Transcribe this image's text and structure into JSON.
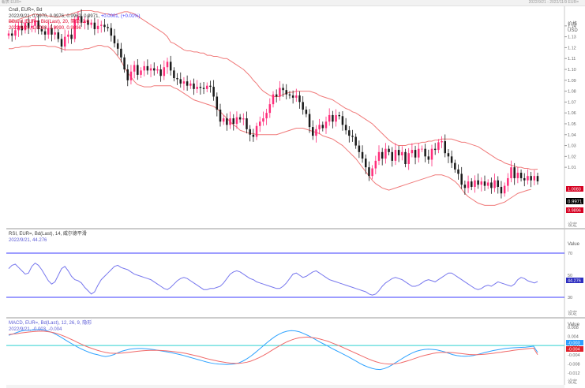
{
  "window": {
    "title_left": "報表 EUR=",
    "title_right": "2022/9/21 - 2022/11/9 EUR="
  },
  "price_panel": {
    "line1_a": "Cndl, EUR=, Bd",
    "line2_a": "2022/9/21, 0.9970, 0.9976, 0.9962, 0.9971,",
    "line2_b": "+0.0001, (+0.01%)",
    "line3": "BBand, EUR=, Bid(Last), 20, 简单, 2.0",
    "line4": "2022/9/21, 1.0083, 0.9990, 0.9896",
    "axis_title1": "价格",
    "axis_title2": "USD",
    "ticks": [
      "1.14",
      "1.13",
      "1.12",
      "1.11",
      "1.10",
      "1.09",
      "1.08",
      "1.07",
      "1.06",
      "1.05",
      "1.04",
      "1.03",
      "1.02",
      "1.01"
    ],
    "last_price_tag": "0.9971",
    "upper_tag": "1.0083",
    "lower_tag": "0.9896",
    "footer": "设定"
  },
  "rsi_panel": {
    "line1": "RSI, EUR=, Bd(Last), 14, 威尔德平滑",
    "line2": "2022/9/21, 44.276",
    "axis_title": "Value",
    "ticks": [
      "70",
      "50",
      "30"
    ],
    "value_tag": "44.276",
    "footer": "设定"
  },
  "macd_panel": {
    "line1": "MACD, EUR=, Bd(Last), 12, 26, 9, 隐形",
    "line2": "2022/9/21, -0.003, -0.004",
    "axis_title": "Value",
    "ticks": [
      "0.008",
      "0.004",
      "0.000",
      "-0.004",
      "-0.008",
      "-0.012"
    ],
    "tag_macd": "-0.003",
    "tag_signal": "-0.004",
    "footer": "设定"
  },
  "colors": {
    "up_candle": "#ff2d7a",
    "down_candle": "#1a1a1a",
    "bollinger": "#f07a7a",
    "rsi_line": "#7777ee",
    "rsi_bounds": "#3b3bff",
    "macd_line": "#2fa3ff",
    "signal_line": "#f06a6a",
    "zero_line": "#2fd0d0"
  },
  "chart_data": [
    {
      "type": "candlestick",
      "panel": "price",
      "ylim": [
        0.955,
        1.158
      ],
      "y_ticks": [
        1.14,
        1.13,
        1.12,
        1.11,
        1.1,
        1.09,
        1.08,
        1.07,
        1.06,
        1.05,
        1.04,
        1.03,
        1.02,
        1.01
      ],
      "close": [
        1.133,
        1.131,
        1.136,
        1.14,
        1.136,
        1.143,
        1.138,
        1.14,
        1.145,
        1.137,
        1.135,
        1.132,
        1.138,
        1.132,
        1.134,
        1.128,
        1.121,
        1.13,
        1.132,
        1.128,
        1.146,
        1.149,
        1.143,
        1.145,
        1.141,
        1.143,
        1.137,
        1.14,
        1.141,
        1.139,
        1.138,
        1.131,
        1.124,
        1.119,
        1.111,
        1.1,
        1.09,
        1.098,
        1.104,
        1.095,
        1.099,
        1.103,
        1.099,
        1.101,
        1.099,
        1.1,
        1.094,
        1.102,
        1.107,
        1.099,
        1.092,
        1.091,
        1.087,
        1.089,
        1.085,
        1.087,
        1.082,
        1.084,
        1.083,
        1.082,
        1.085,
        1.084,
        1.075,
        1.063,
        1.052,
        1.055,
        1.049,
        1.055,
        1.05,
        1.056,
        1.054,
        1.055,
        1.045,
        1.04,
        1.038,
        1.048,
        1.052,
        1.055,
        1.06,
        1.068,
        1.077,
        1.075,
        1.083,
        1.081,
        1.077,
        1.076,
        1.074,
        1.076,
        1.07,
        1.063,
        1.059,
        1.047,
        1.039,
        1.045,
        1.049,
        1.046,
        1.052,
        1.058,
        1.052,
        1.058,
        1.057,
        1.049,
        1.044,
        1.039,
        1.038,
        1.03,
        1.024,
        1.018,
        1.01,
        1.002,
        1.009,
        1.016,
        1.024,
        1.018,
        1.027,
        1.024,
        1.016,
        1.026,
        1.021,
        1.024,
        1.013,
        1.023,
        1.026,
        1.019,
        1.027,
        1.027,
        1.02,
        1.017,
        1.027,
        1.026,
        1.033,
        1.034,
        1.023,
        1.02,
        1.014,
        1.008,
        1.004,
        0.994,
        0.991,
        0.997,
        0.992,
        0.998,
        0.994,
        0.997,
        0.993,
        0.996,
        0.991,
        0.998,
        0.992,
        0.986,
        0.993,
        1.0,
        1.01,
        1.0,
        1.005,
        1.0,
        0.998,
        1.002,
        0.998,
        1.002,
        0.9971
      ],
      "bollinger_upper": [
        1.144,
        1.144,
        1.145,
        1.146,
        1.147,
        1.148,
        1.149,
        1.15,
        1.151,
        1.15,
        1.15,
        1.15,
        1.149,
        1.149,
        1.148,
        1.148,
        1.149,
        1.15,
        1.15,
        1.151,
        1.152,
        1.153,
        1.154,
        1.154,
        1.154,
        1.154,
        1.153,
        1.153,
        1.152,
        1.151,
        1.151,
        1.15,
        1.15,
        1.151,
        1.152,
        1.153,
        1.153,
        1.152,
        1.151,
        1.149,
        1.147,
        1.145,
        1.143,
        1.141,
        1.139,
        1.137,
        1.135,
        1.133,
        1.13,
        1.125,
        1.124,
        1.122,
        1.12,
        1.118,
        1.117,
        1.117,
        1.116,
        1.116,
        1.115,
        1.115,
        1.113,
        1.113,
        1.112,
        1.112,
        1.111,
        1.11,
        1.11,
        1.108,
        1.106,
        1.104,
        1.102,
        1.1,
        1.097,
        1.094,
        1.09,
        1.087,
        1.083,
        1.08,
        1.078,
        1.076,
        1.075,
        1.075,
        1.075,
        1.077,
        1.078,
        1.079,
        1.079,
        1.08,
        1.08,
        1.08,
        1.08,
        1.08,
        1.079,
        1.078,
        1.076,
        1.075,
        1.074,
        1.073,
        1.072,
        1.07,
        1.068,
        1.066,
        1.064,
        1.063,
        1.061,
        1.06,
        1.058,
        1.056,
        1.054,
        1.052,
        1.05,
        1.047,
        1.044,
        1.041,
        1.038,
        1.035,
        1.033,
        1.031,
        1.03,
        1.03,
        1.03,
        1.031,
        1.031,
        1.032,
        1.032,
        1.033,
        1.033,
        1.034,
        1.034,
        1.035,
        1.035,
        1.036,
        1.036,
        1.036,
        1.036,
        1.035,
        1.034,
        1.033,
        1.033,
        1.032,
        1.031,
        1.03,
        1.029,
        1.027,
        1.025,
        1.023,
        1.021,
        1.019,
        1.017,
        1.016,
        1.014,
        1.013,
        1.012,
        1.011,
        1.01,
        1.01,
        1.009,
        1.009,
        1.008,
        1.008,
        1.0083
      ],
      "bollinger_lower": [
        1.119,
        1.119,
        1.12,
        1.12,
        1.121,
        1.121,
        1.121,
        1.122,
        1.122,
        1.122,
        1.122,
        1.122,
        1.121,
        1.121,
        1.121,
        1.12,
        1.119,
        1.118,
        1.118,
        1.118,
        1.118,
        1.118,
        1.118,
        1.119,
        1.119,
        1.12,
        1.121,
        1.122,
        1.122,
        1.121,
        1.121,
        1.119,
        1.116,
        1.112,
        1.108,
        1.102,
        1.097,
        1.093,
        1.089,
        1.086,
        1.085,
        1.084,
        1.084,
        1.084,
        1.085,
        1.085,
        1.085,
        1.085,
        1.085,
        1.085,
        1.083,
        1.082,
        1.08,
        1.078,
        1.076,
        1.074,
        1.072,
        1.071,
        1.07,
        1.069,
        1.068,
        1.067,
        1.066,
        1.064,
        1.061,
        1.058,
        1.055,
        1.052,
        1.049,
        1.047,
        1.044,
        1.043,
        1.042,
        1.041,
        1.041,
        1.04,
        1.04,
        1.04,
        1.04,
        1.04,
        1.04,
        1.04,
        1.041,
        1.042,
        1.043,
        1.044,
        1.045,
        1.046,
        1.046,
        1.046,
        1.045,
        1.044,
        1.043,
        1.042,
        1.041,
        1.039,
        1.038,
        1.037,
        1.036,
        1.034,
        1.032,
        1.03,
        1.027,
        1.024,
        1.021,
        1.018,
        1.014,
        1.01,
        1.006,
        1.002,
        0.998,
        0.995,
        0.993,
        0.991,
        0.99,
        0.989,
        0.99,
        0.991,
        0.992,
        0.993,
        0.994,
        0.995,
        0.996,
        0.997,
        0.998,
        0.999,
        1.0,
        1.001,
        1.002,
        1.003,
        1.003,
        1.003,
        1.002,
        1.001,
        0.999,
        0.997,
        0.994,
        0.99,
        0.986,
        0.983,
        0.981,
        0.979,
        0.977,
        0.976,
        0.975,
        0.975,
        0.975,
        0.975,
        0.976,
        0.977,
        0.978,
        0.98,
        0.982,
        0.984,
        0.986,
        0.987,
        0.988,
        0.989,
        0.9896
      ]
    },
    {
      "type": "line",
      "panel": "rsi",
      "ylim": [
        15,
        85
      ],
      "bounds": [
        30,
        70
      ],
      "series": [
        {
          "values": [
            56,
            59,
            60,
            57,
            54,
            51,
            52,
            58,
            61,
            59,
            55,
            50,
            45,
            42,
            44,
            50,
            56,
            58,
            54,
            49,
            46,
            45,
            43,
            39,
            36,
            33,
            35,
            41,
            46,
            49,
            52,
            55,
            58,
            59,
            57,
            56,
            55,
            53,
            51,
            50,
            49,
            48,
            47,
            46,
            44,
            42,
            40,
            38,
            37,
            39,
            42,
            45,
            47,
            48,
            47,
            45,
            43,
            41,
            39,
            37,
            37,
            38,
            38,
            39,
            40,
            43,
            47,
            51,
            53,
            54,
            53,
            51,
            49,
            47,
            46,
            44,
            43,
            42,
            41,
            40,
            39,
            38,
            38,
            40,
            43,
            47,
            51,
            52,
            50,
            48,
            49,
            51,
            53,
            54,
            52,
            50,
            48,
            46,
            45,
            44,
            43,
            42,
            41,
            40,
            39,
            38,
            37,
            36,
            35,
            33,
            32,
            33,
            36,
            40,
            43,
            45,
            47,
            48,
            47,
            46,
            44,
            42,
            40,
            40,
            41,
            43,
            45,
            46,
            45,
            44,
            46,
            48,
            50,
            52,
            52,
            50,
            48,
            46,
            44,
            42,
            40,
            38,
            37,
            38,
            40,
            41,
            40,
            42,
            44,
            43,
            42,
            41,
            40,
            42,
            46,
            48,
            47,
            45,
            44,
            43,
            44.276
          ]
        }
      ]
    },
    {
      "type": "line",
      "panel": "macd",
      "ylim": [
        -0.0165,
        0.0104
      ],
      "zero_line": 0.0,
      "series": [
        {
          "values": [
            0.0045,
            0.005,
            0.0057,
            0.0063,
            0.0066,
            0.0067,
            0.0068,
            0.0069,
            0.007,
            0.0067,
            0.0062,
            0.0055,
            0.0046,
            0.0036,
            0.0025,
            0.0014,
            0.0004,
            -0.0006,
            -0.0015,
            -0.0023,
            -0.003,
            -0.0036,
            -0.004,
            -0.0045,
            -0.0048,
            -0.0045,
            -0.004,
            -0.0032,
            -0.0025,
            -0.002,
            -0.0016,
            -0.0014,
            -0.0013,
            -0.0013,
            -0.0014,
            -0.0016,
            -0.0018,
            -0.0021,
            -0.0024,
            -0.0027,
            -0.003,
            -0.0034,
            -0.0038,
            -0.0042,
            -0.0047,
            -0.0052,
            -0.0057,
            -0.0062,
            -0.0067,
            -0.0072,
            -0.0076,
            -0.0079,
            -0.0081,
            -0.0082,
            -0.0083,
            -0.0082,
            -0.008,
            -0.0076,
            -0.0068,
            -0.0058,
            -0.0046,
            -0.0032,
            -0.0017,
            -0.0002,
            0.0013,
            0.0027,
            0.004,
            0.005,
            0.0058,
            0.0063,
            0.0065,
            0.0064,
            0.006,
            0.0053,
            0.0045,
            0.0036,
            0.0026,
            0.0016,
            0.0007,
            -0.0002,
            -0.0012,
            -0.0021,
            -0.003,
            -0.0039,
            -0.0048,
            -0.0058,
            -0.0068,
            -0.0078,
            -0.0087,
            -0.0094,
            -0.01,
            -0.0104,
            -0.0105,
            -0.0101,
            -0.0094,
            -0.0084,
            -0.0073,
            -0.0062,
            -0.0051,
            -0.0041,
            -0.0032,
            -0.0025,
            -0.002,
            -0.0017,
            -0.0016,
            -0.0017,
            -0.0019,
            -0.0023,
            -0.0028,
            -0.0034,
            -0.004,
            -0.0044,
            -0.0046,
            -0.0047,
            -0.0046,
            -0.0044,
            -0.004,
            -0.0035,
            -0.003,
            -0.0026,
            -0.0022,
            -0.0019,
            -0.0016,
            -0.0013,
            -0.0011,
            -0.001,
            -0.0009,
            -0.0008,
            -0.0007,
            -0.0005,
            -0.0003,
            -0.003
          ]
        },
        {
          "values": [
            0.0048,
            0.005,
            0.0052,
            0.0055,
            0.0057,
            0.0059,
            0.0061,
            0.0062,
            0.0063,
            0.0062,
            0.006,
            0.0057,
            0.0052,
            0.0046,
            0.0039,
            0.0031,
            0.0023,
            0.0014,
            0.0006,
            -0.0002,
            -0.0009,
            -0.0015,
            -0.0021,
            -0.0026,
            -0.003,
            -0.0033,
            -0.0034,
            -0.0034,
            -0.0033,
            -0.0031,
            -0.0029,
            -0.0027,
            -0.0025,
            -0.0023,
            -0.0022,
            -0.0021,
            -0.0021,
            -0.0021,
            -0.0022,
            -0.0023,
            -0.0025,
            -0.0027,
            -0.0029,
            -0.0032,
            -0.0035,
            -0.0039,
            -0.0043,
            -0.0047,
            -0.0052,
            -0.0057,
            -0.0061,
            -0.0065,
            -0.0069,
            -0.0072,
            -0.0075,
            -0.0077,
            -0.0078,
            -0.0078,
            -0.0076,
            -0.0073,
            -0.0068,
            -0.0061,
            -0.0053,
            -0.0044,
            -0.0034,
            -0.0023,
            -0.0012,
            -0.0002,
            0.0008,
            0.0017,
            0.0024,
            0.003,
            0.0034,
            0.0036,
            0.0037,
            0.0035,
            0.0033,
            0.0029,
            0.0024,
            0.0019,
            0.0012,
            0.0005,
            -0.0002,
            -0.001,
            -0.0018,
            -0.0026,
            -0.0034,
            -0.0042,
            -0.005,
            -0.0058,
            -0.0065,
            -0.0071,
            -0.0076,
            -0.0079,
            -0.0081,
            -0.0081,
            -0.0079,
            -0.0076,
            -0.0071,
            -0.0066,
            -0.006,
            -0.0054,
            -0.0048,
            -0.0043,
            -0.0039,
            -0.0035,
            -0.0032,
            -0.003,
            -0.003,
            -0.003,
            -0.0031,
            -0.0033,
            -0.0035,
            -0.0037,
            -0.0039,
            -0.004,
            -0.004,
            -0.0039,
            -0.0038,
            -0.0036,
            -0.0034,
            -0.0031,
            -0.0029,
            -0.0026,
            -0.0024,
            -0.0021,
            -0.0019,
            -0.0017,
            -0.0015,
            -0.0013,
            -0.0011,
            -0.004
          ]
        }
      ]
    }
  ]
}
